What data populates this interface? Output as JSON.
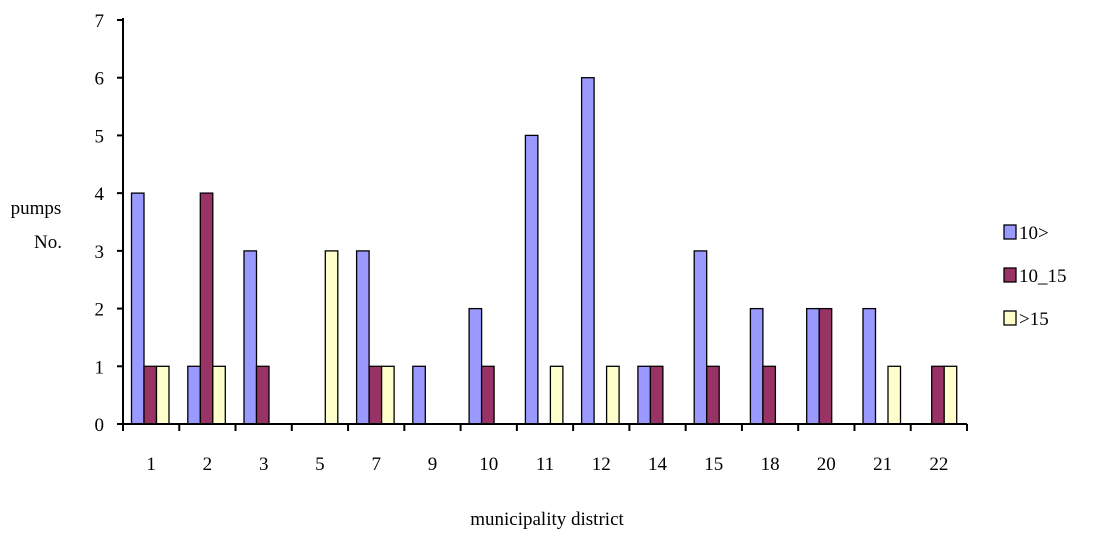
{
  "chart_data": {
    "type": "bar",
    "categories": [
      "1",
      "2",
      "3",
      "5",
      "7",
      "9",
      "10",
      "11",
      "12",
      "14",
      "15",
      "18",
      "20",
      "21",
      "22"
    ],
    "series": [
      {
        "name": "10>",
        "color": "#9999ff",
        "values": [
          4,
          1,
          3,
          0,
          3,
          1,
          2,
          5,
          6,
          1,
          3,
          2,
          2,
          2,
          0
        ]
      },
      {
        "name": "10_15",
        "color": "#993366",
        "values": [
          1,
          4,
          1,
          0,
          1,
          0,
          1,
          0,
          0,
          1,
          1,
          1,
          2,
          0,
          1
        ]
      },
      {
        "name": ">15",
        "color": "#ffffcc",
        "values": [
          1,
          1,
          0,
          3,
          1,
          0,
          0,
          1,
          1,
          0,
          0,
          0,
          0,
          1,
          1
        ]
      }
    ],
    "ylim": [
      0,
      7
    ],
    "yticks": [
      "0",
      "1",
      "2",
      "3",
      "4",
      "5",
      "6",
      "7"
    ],
    "ylabel_line1": "pumps",
    "ylabel_line2": "No.",
    "xlabel": "municipality district",
    "legend_position": "right",
    "grid": false
  }
}
